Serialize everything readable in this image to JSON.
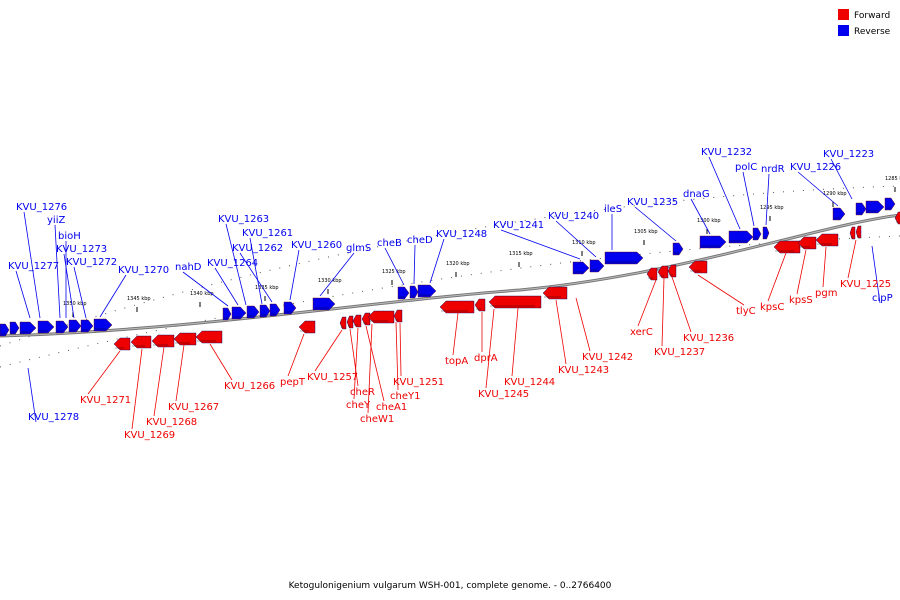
{
  "legend": {
    "forward": {
      "label": "Forward",
      "color": "#ee0000"
    },
    "reverse": {
      "label": "Reverse",
      "color": "#0000ee"
    }
  },
  "caption": "Ketogulonigenium vulgarum WSH-001, complete genome. - 0..2766400",
  "scale_ticks": [
    {
      "label": "1285 kbp"
    },
    {
      "label": "1290 kbp"
    },
    {
      "label": "1295 kbp"
    },
    {
      "label": "1300 kbp"
    },
    {
      "label": "1305 kbp"
    },
    {
      "label": "1310 kbp"
    },
    {
      "label": "1315 kbp"
    },
    {
      "label": "1320 kbp"
    },
    {
      "label": "1325 kbp"
    },
    {
      "label": "1330 kbp"
    },
    {
      "label": "1335 kbp"
    },
    {
      "label": "1340 kbp"
    },
    {
      "label": "1345 kbp"
    },
    {
      "label": "1350 kbp"
    }
  ],
  "genes_reverse": [
    "KVU_1276",
    "yiiZ",
    "bioH",
    "KVU_1273",
    "KVU_1272",
    "KVU_1277",
    "KVU_1270",
    "nahD",
    "KVU_1263",
    "KVU_1261",
    "KVU_1262",
    "KVU_1264",
    "KVU_1260",
    "glmS",
    "cheB",
    "cheD",
    "KVU_1248",
    "KVU_1241",
    "KVU_1240",
    "ileS",
    "KVU_1235",
    "dnaG",
    "KVU_1232",
    "polC",
    "nrdR",
    "KVU_1226",
    "KVU_1223",
    "clpP",
    "KVU_1278"
  ],
  "genes_forward": [
    "KVU_1271",
    "KVU_1269",
    "KVU_1268",
    "KVU_1267",
    "KVU_1266",
    "pepT",
    "KVU_1257",
    "cheR",
    "cheY",
    "cheA1",
    "cheW1",
    "cheY1",
    "KVU_1251",
    "topA",
    "dprA",
    "KVU_1245",
    "KVU_1244",
    "KVU_1243",
    "KVU_1242",
    "xerC",
    "KVU_1237",
    "KVU_1236",
    "tlyC",
    "kpsC",
    "kpsS",
    "pgm",
    "KVU_1225"
  ]
}
